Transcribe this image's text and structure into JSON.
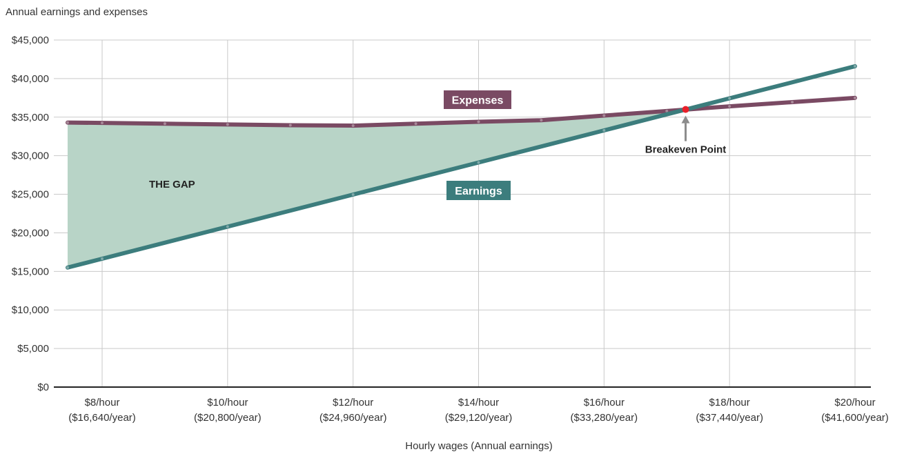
{
  "chart_data": {
    "type": "line",
    "title": "",
    "ylabel": "Annual earnings and expenses",
    "xlabel": "Hourly wages (Annual earnings)",
    "x_unit": "$/hour",
    "xlim": [
      7.45,
      20
    ],
    "ylim": [
      0,
      45000
    ],
    "grid": true,
    "y_ticks": [
      {
        "value": 0,
        "label": "$0"
      },
      {
        "value": 5000,
        "label": "$5,000"
      },
      {
        "value": 10000,
        "label": "$10,000"
      },
      {
        "value": 15000,
        "label": "$15,000"
      },
      {
        "value": 20000,
        "label": "$20,000"
      },
      {
        "value": 25000,
        "label": "$25,000"
      },
      {
        "value": 30000,
        "label": "$30,000"
      },
      {
        "value": 35000,
        "label": "$35,000"
      },
      {
        "value": 40000,
        "label": "$40,000"
      },
      {
        "value": 45000,
        "label": "$45,000"
      }
    ],
    "x_ticks": [
      {
        "value": 8,
        "line1": "$8/hour",
        "line2": "($16,640/year)"
      },
      {
        "value": 10,
        "line1": "$10/hour",
        "line2": "($20,800/year)"
      },
      {
        "value": 12,
        "line1": "$12/hour",
        "line2": "($24,960/year)"
      },
      {
        "value": 14,
        "line1": "$14/hour",
        "line2": "($29,120/year)"
      },
      {
        "value": 16,
        "line1": "$16/hour",
        "line2": "($33,280/year)"
      },
      {
        "value": 18,
        "line1": "$18/hour",
        "line2": "($37,440/year)"
      },
      {
        "value": 20,
        "line1": "$20/hour",
        "line2": "($41,600/year)"
      }
    ],
    "series": [
      {
        "name": "Expenses",
        "color": "#7a4a63",
        "x": [
          7.45,
          8,
          9,
          10,
          11,
          12,
          13,
          14,
          15,
          16,
          17,
          18,
          19,
          20
        ],
        "values": [
          34300,
          34250,
          34150,
          34050,
          33950,
          33900,
          34150,
          34400,
          34600,
          35200,
          35800,
          36400,
          36950,
          37500
        ]
      },
      {
        "name": "Earnings",
        "color": "#3c7d7d",
        "x": [
          7.45,
          8,
          10,
          12,
          14,
          16,
          18,
          20
        ],
        "values": [
          15500,
          16640,
          20800,
          24960,
          29120,
          33280,
          37440,
          41600
        ]
      }
    ],
    "annotations": {
      "gap_label": "THE GAP",
      "gap_color": "#b8d4c7",
      "breakeven_label": "Breakeven Point",
      "breakeven_x": 17.3,
      "breakeven_y": 36000,
      "breakeven_color": "#e8202a",
      "arrow_color": "#8c8c8c"
    }
  }
}
